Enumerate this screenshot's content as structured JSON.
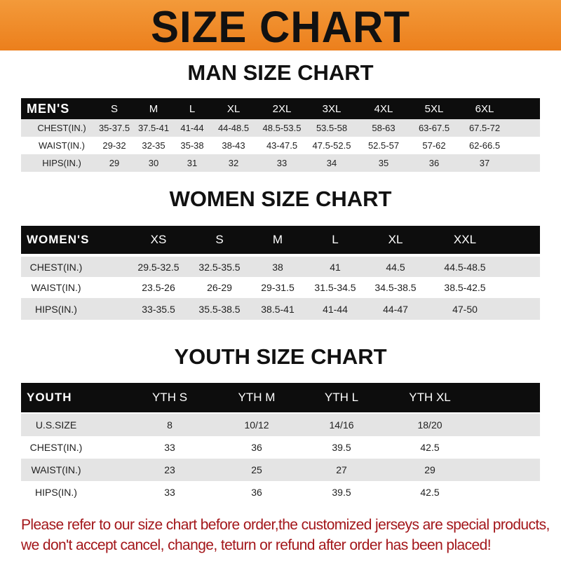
{
  "banner": {
    "title": "SIZE CHART"
  },
  "men": {
    "title": "MAN SIZE CHART",
    "header": [
      "MEN'S",
      "S",
      "M",
      "L",
      "XL",
      "2XL",
      "3XL",
      "4XL",
      "5XL",
      "6XL"
    ],
    "rows": [
      [
        "CHEST(IN.)",
        "35-37.5",
        "37.5-41",
        "41-44",
        "44-48.5",
        "48.5-53.5",
        "53.5-58",
        "58-63",
        "63-67.5",
        "67.5-72"
      ],
      [
        "WAIST(IN.)",
        "29-32",
        "32-35",
        "35-38",
        "38-43",
        "43-47.5",
        "47.5-52.5",
        "52.5-57",
        "57-62",
        "62-66.5"
      ],
      [
        "HIPS(IN.)",
        "29",
        "30",
        "31",
        "32",
        "33",
        "34",
        "35",
        "36",
        "37"
      ]
    ]
  },
  "women": {
    "title": "WOMEN SIZE CHART",
    "header": [
      "WOMEN'S",
      "XS",
      "S",
      "M",
      "L",
      "XL",
      "XXL"
    ],
    "rows": [
      [
        "CHEST(IN.)",
        "29.5-32.5",
        "32.5-35.5",
        "38",
        "41",
        "44.5",
        "44.5-48.5"
      ],
      [
        "WAIST(IN.)",
        "23.5-26",
        "26-29",
        "29-31.5",
        "31.5-34.5",
        "34.5-38.5",
        "38.5-42.5"
      ],
      [
        "HIPS(IN.)",
        "33-35.5",
        "35.5-38.5",
        "38.5-41",
        "41-44",
        "44-47",
        "47-50"
      ]
    ]
  },
  "youth": {
    "title": "YOUTH SIZE CHART",
    "header": [
      "YOUTH",
      "YTH S",
      "YTH M",
      "YTH L",
      "YTH XL"
    ],
    "rows": [
      [
        "U.S.SIZE",
        "8",
        "10/12",
        "14/16",
        "18/20"
      ],
      [
        "CHEST(IN.)",
        "33",
        "36",
        "39.5",
        "42.5"
      ],
      [
        "WAIST(IN.)",
        "23",
        "25",
        "27",
        "29"
      ],
      [
        "HIPS(IN.)",
        "33",
        "36",
        "39.5",
        "42.5"
      ]
    ]
  },
  "note": {
    "line1": "Please refer to our size chart before order,the customized jerseys are special products,",
    "line2": "we don't accept cancel, change, teturn or refund after order has been placed!"
  },
  "colors": {
    "banner": "#ec7f1c",
    "header_row": "#0d0d0d",
    "stripe": "#e4e4e4",
    "note": "#a3161a"
  }
}
